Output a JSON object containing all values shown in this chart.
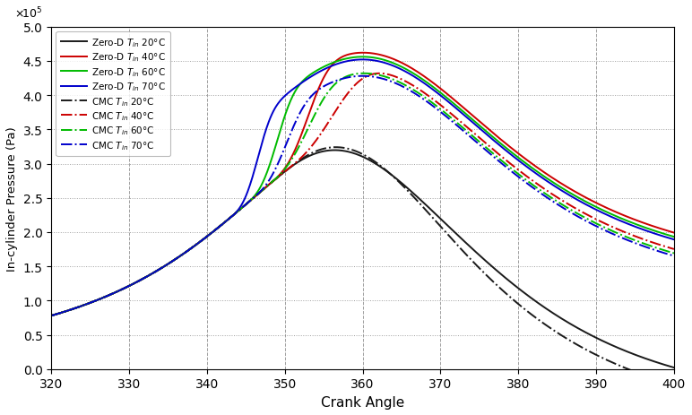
{
  "ylabel": "In-cylinder Pressure (Pa)",
  "xlabel": "Crank Angle",
  "xlim": [
    320,
    400
  ],
  "ylim": [
    0,
    5
  ],
  "yticks": [
    0,
    0.5,
    1,
    1.5,
    2,
    2.5,
    3,
    3.5,
    4,
    4.5,
    5
  ],
  "xticks": [
    320,
    330,
    340,
    350,
    360,
    370,
    380,
    390,
    400
  ],
  "colors": {
    "black": "#1a1a1a",
    "red": "#cc0000",
    "green": "#00bb00",
    "blue": "#0000cc"
  },
  "legend_entries": [
    "Zero-D $T_{in}$ 20°C",
    "Zero-D $T_{in}$ 40°C",
    "Zero-D $T_{in}$ 60°C",
    "Zero-D $T_{in}$ 70°C",
    "CMC $T_{in}$ 20°C",
    "CMC $T_{in}$ 40°C",
    "CMC $T_{in}$ 60°C",
    "CMC $T_{in}$ 70°C"
  ],
  "scale_label": "x 10",
  "scale_exp": "5"
}
